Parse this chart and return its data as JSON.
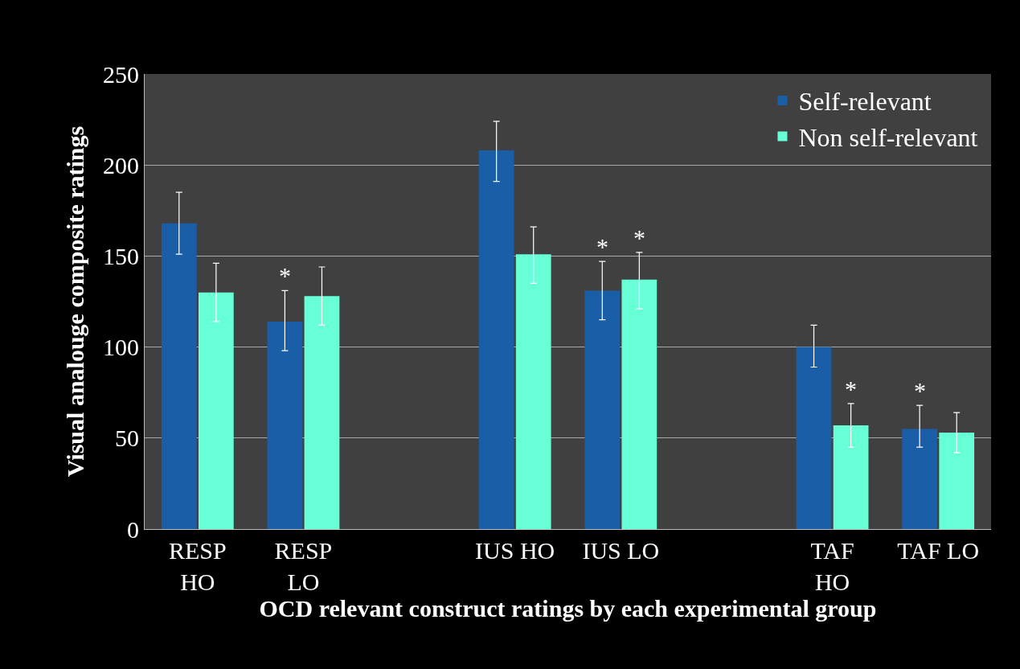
{
  "chart_data": {
    "type": "bar",
    "xlabel": "OCD relevant construct ratings by each experimental group",
    "ylabel": "Visual analouge composite ratings",
    "categories": [
      "RESP\nHO",
      "RESP\nLO",
      null,
      "IUS HO",
      "IUS LO",
      null,
      "TAF\nHO",
      "TAF LO"
    ],
    "series": [
      {
        "name": "Self-relevant",
        "color": "#1a5ea8",
        "values": [
          168,
          114,
          null,
          208,
          131,
          null,
          100,
          55
        ],
        "errors": [
          [
            151,
            185
          ],
          [
            98,
            131
          ],
          null,
          [
            191,
            224
          ],
          [
            115,
            147
          ],
          null,
          [
            89,
            112
          ],
          [
            45,
            68
          ]
        ],
        "value_labels": [
          null,
          "*",
          null,
          null,
          "*",
          null,
          null,
          "*"
        ]
      },
      {
        "name": "Non self-relevant",
        "color": "#66ffd6",
        "values": [
          130,
          128,
          null,
          151,
          137,
          null,
          57,
          53
        ],
        "errors": [
          [
            114,
            146
          ],
          [
            112,
            144
          ],
          null,
          [
            135,
            166
          ],
          [
            121,
            152
          ],
          null,
          [
            45,
            69
          ],
          [
            42,
            64
          ]
        ],
        "value_labels": [
          null,
          null,
          null,
          null,
          "*",
          null,
          "*",
          null
        ]
      }
    ],
    "ylim": [
      0,
      250
    ],
    "yticks": [
      0,
      50,
      100,
      150,
      200,
      250
    ],
    "grid": "y",
    "legend": "top right"
  }
}
